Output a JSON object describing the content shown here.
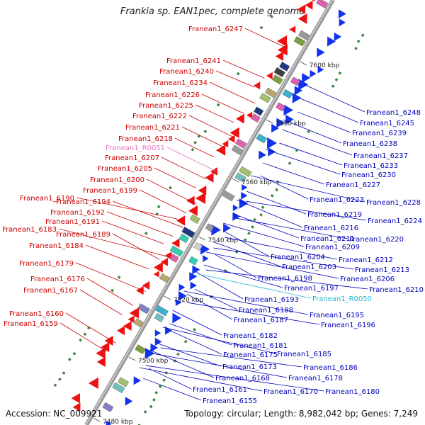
{
  "title": "Frankia sp. EAN1pec, complete genome",
  "accession_text": "Accession: NC_009921",
  "topology_text": "Topology: circular; Length: 8,982,042 bp; Genes: 7,249",
  "colors": {
    "backbone": "#8c8c8c",
    "left_labels": "#cc0000",
    "right_labels": "#0000bb",
    "rna_left": "#e879c0",
    "rna_right": "#22b8d8",
    "plus_strand": "#ee1111",
    "minus_strand": "#1133ee"
  },
  "ticks": [
    {
      "label": "7600 kbp"
    },
    {
      "label": "7580 kbp"
    },
    {
      "label": "7560 kbp"
    },
    {
      "label": "7540 kbp"
    },
    {
      "label": "7520 kbp"
    },
    {
      "label": "7500 kbp"
    },
    {
      "label": "7480 kbp"
    }
  ],
  "left_genes": [
    {
      "name": "Franean1_6247"
    },
    {
      "name": "Franean1_6241"
    },
    {
      "name": "Franean1_6240"
    },
    {
      "name": "Franean1_6234"
    },
    {
      "name": "Franean1_6226"
    },
    {
      "name": "Franean1_6225"
    },
    {
      "name": "Franean1_6222"
    },
    {
      "name": "Franean1_6221"
    },
    {
      "name": "Franean1_6218"
    },
    {
      "name": "Franean1_R0051",
      "rna": true
    },
    {
      "name": "Franean1_6207"
    },
    {
      "name": "Franean1_6205"
    },
    {
      "name": "Franean1_6200"
    },
    {
      "name": "Franean1_6199"
    },
    {
      "name": "Franean1_6190"
    },
    {
      "name": "Franean1_6194"
    },
    {
      "name": "Franean1_6192"
    },
    {
      "name": "Franean1_6191"
    },
    {
      "name": "Franean1_6183"
    },
    {
      "name": "Franean1_6189"
    },
    {
      "name": "Franean1_6184"
    },
    {
      "name": "Franean1_6179"
    },
    {
      "name": "Franean1_6176"
    },
    {
      "name": "Franean1_6167"
    },
    {
      "name": "Franean1_6160"
    },
    {
      "name": "Franean1_6159"
    }
  ],
  "right_genes": [
    {
      "name": "Franean1_6248"
    },
    {
      "name": "Franean1_6245"
    },
    {
      "name": "Franean1_6239"
    },
    {
      "name": "Franean1_6238"
    },
    {
      "name": "Franean1_6237"
    },
    {
      "name": "Franean1_6233"
    },
    {
      "name": "Franean1_6230"
    },
    {
      "name": "Franean1_6227"
    },
    {
      "name": "Franean1_6223"
    },
    {
      "name": "Franean1_6228"
    },
    {
      "name": "Franean1_6219"
    },
    {
      "name": "Franean1_6224"
    },
    {
      "name": "Franean1_6216"
    },
    {
      "name": "Franean1_6211"
    },
    {
      "name": "Franean1_6220"
    },
    {
      "name": "Franean1_6209"
    },
    {
      "name": "Franean1_6204"
    },
    {
      "name": "Franean1_6212"
    },
    {
      "name": "Franean1_6203"
    },
    {
      "name": "Franean1_6213"
    },
    {
      "name": "Franean1_6198"
    },
    {
      "name": "Franean1_6206"
    },
    {
      "name": "Franean1_6197"
    },
    {
      "name": "Franean1_6210"
    },
    {
      "name": "Franean1_6193"
    },
    {
      "name": "Franean1_R0050",
      "rna": true
    },
    {
      "name": "Franean1_6188"
    },
    {
      "name": "Franean1_6195"
    },
    {
      "name": "Franean1_6187"
    },
    {
      "name": "Franean1_6196"
    },
    {
      "name": "Franean1_6182"
    },
    {
      "name": "Franean1_6181"
    },
    {
      "name": "Franean1_6175"
    },
    {
      "name": "Franean1_6185"
    },
    {
      "name": "Franean1_6173"
    },
    {
      "name": "Franean1_6186"
    },
    {
      "name": "Franean1_6168"
    },
    {
      "name": "Franean1_6178"
    },
    {
      "name": "Franean1_6161"
    },
    {
      "name": "Franean1_6170"
    },
    {
      "name": "Franean1_6180"
    },
    {
      "name": "Franean1_6155"
    }
  ]
}
